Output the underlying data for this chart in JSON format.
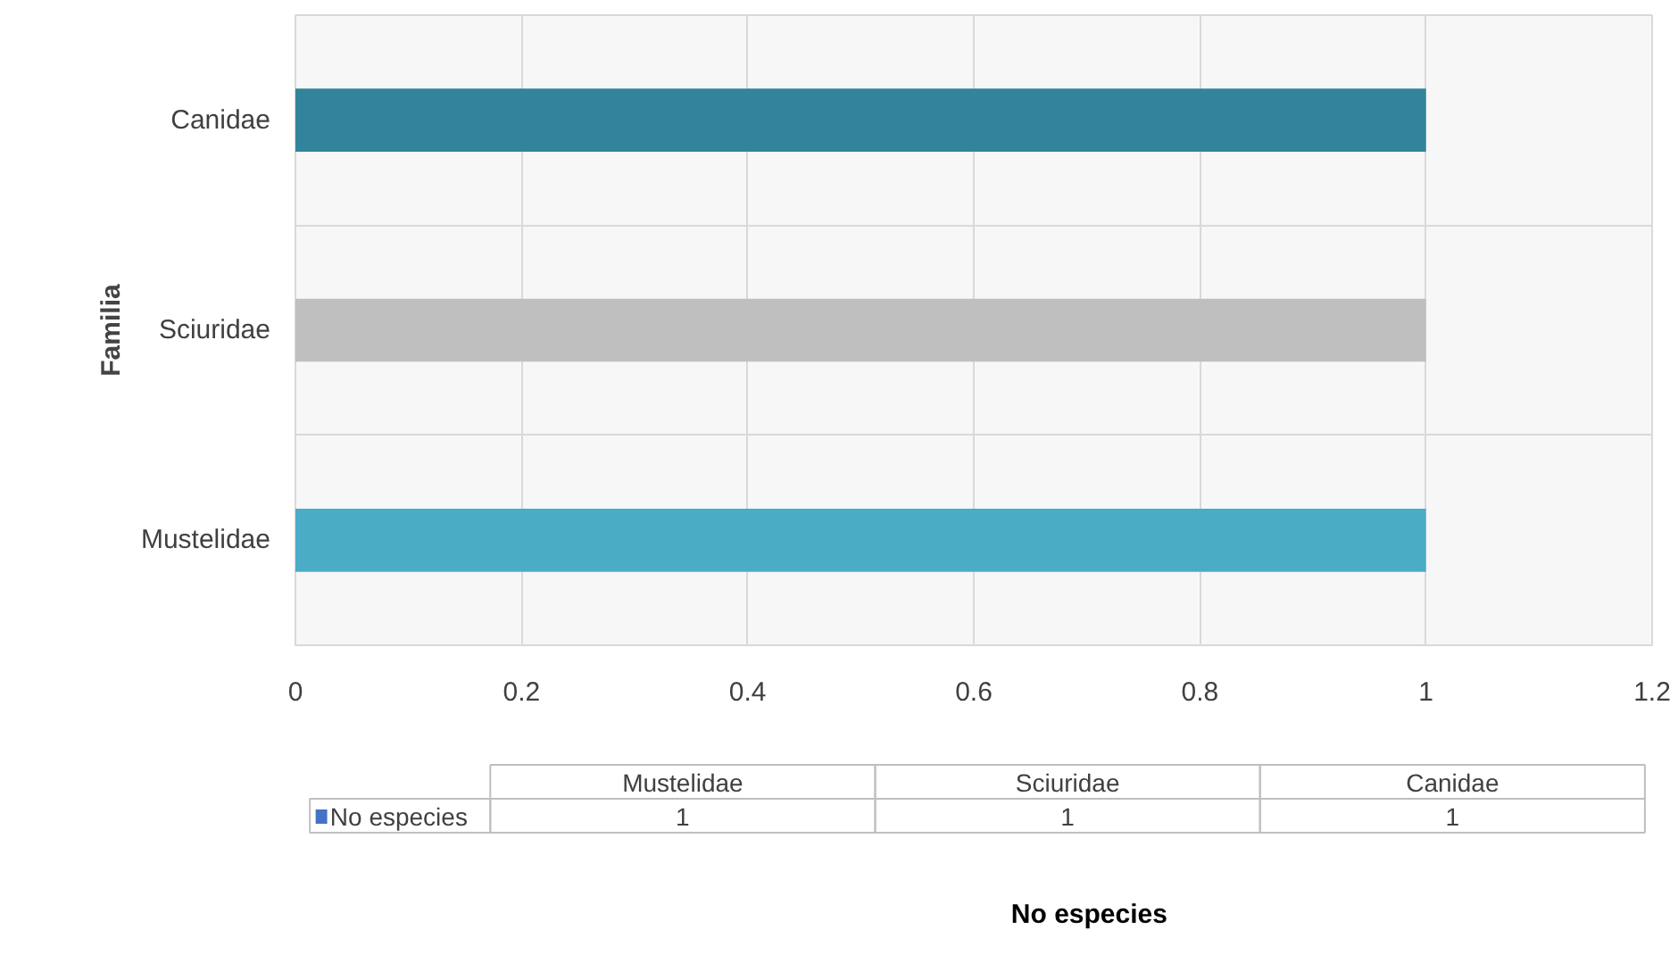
{
  "chart_data": [
    {
      "type": "bar",
      "orientation": "horizontal",
      "categories": [
        "Canidae",
        "Sciuridae",
        "Mustelidae"
      ],
      "values": [
        1,
        1,
        1
      ],
      "colors": [
        "#31849b",
        "#bfbfbf",
        "#4bacc6"
      ],
      "xlim": [
        0,
        1.2
      ],
      "xticks": [
        0,
        0.2,
        0.4,
        0.6,
        0.8,
        1,
        1.2
      ],
      "ylabel": "Familia",
      "grid": true
    },
    {
      "type": "other",
      "categories": [
        "Mustelidae",
        "Sciuridae",
        "Canidae"
      ],
      "series": [
        {
          "name": "No especies",
          "color": "#4472c4",
          "values": [
            1,
            1,
            1
          ]
        }
      ],
      "data_labels": true,
      "annotations": [
        "No especies"
      ]
    }
  ]
}
